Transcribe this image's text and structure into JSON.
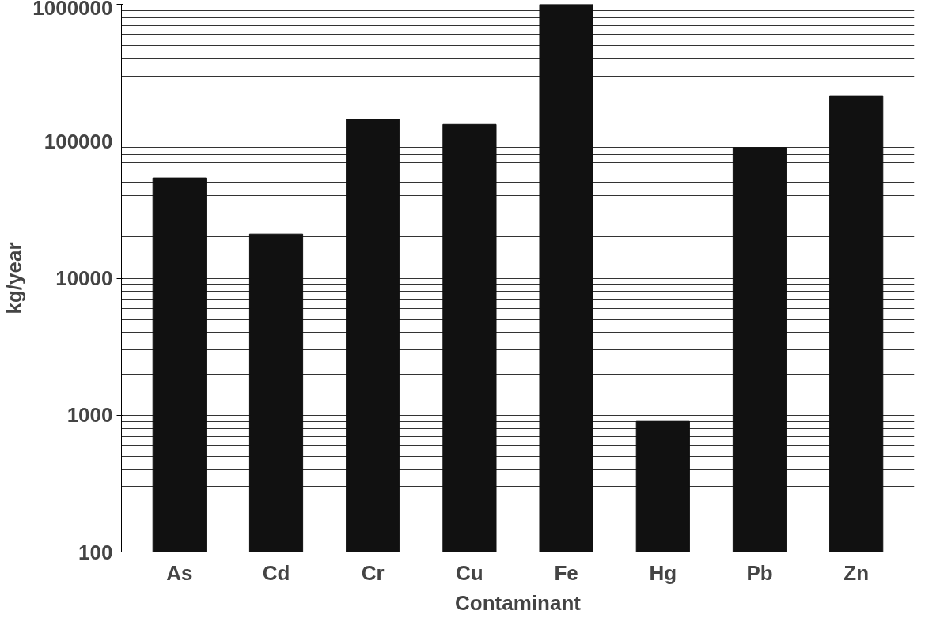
{
  "chart_data": {
    "type": "bar",
    "xlabel": "Contaminant",
    "ylabel": "kg/year",
    "categories": [
      "As",
      "Cd",
      "Cr",
      "Cu",
      "Fe",
      "Hg",
      "Pb",
      "Zn"
    ],
    "values": [
      54000,
      21000,
      145000,
      133000,
      1000000,
      900,
      90000,
      215000
    ],
    "color": "#111111",
    "log": "y",
    "ylim": [
      100,
      1000000
    ],
    "yticks": [
      100,
      1000,
      10000,
      100000,
      1000000
    ],
    "grid": "y"
  }
}
